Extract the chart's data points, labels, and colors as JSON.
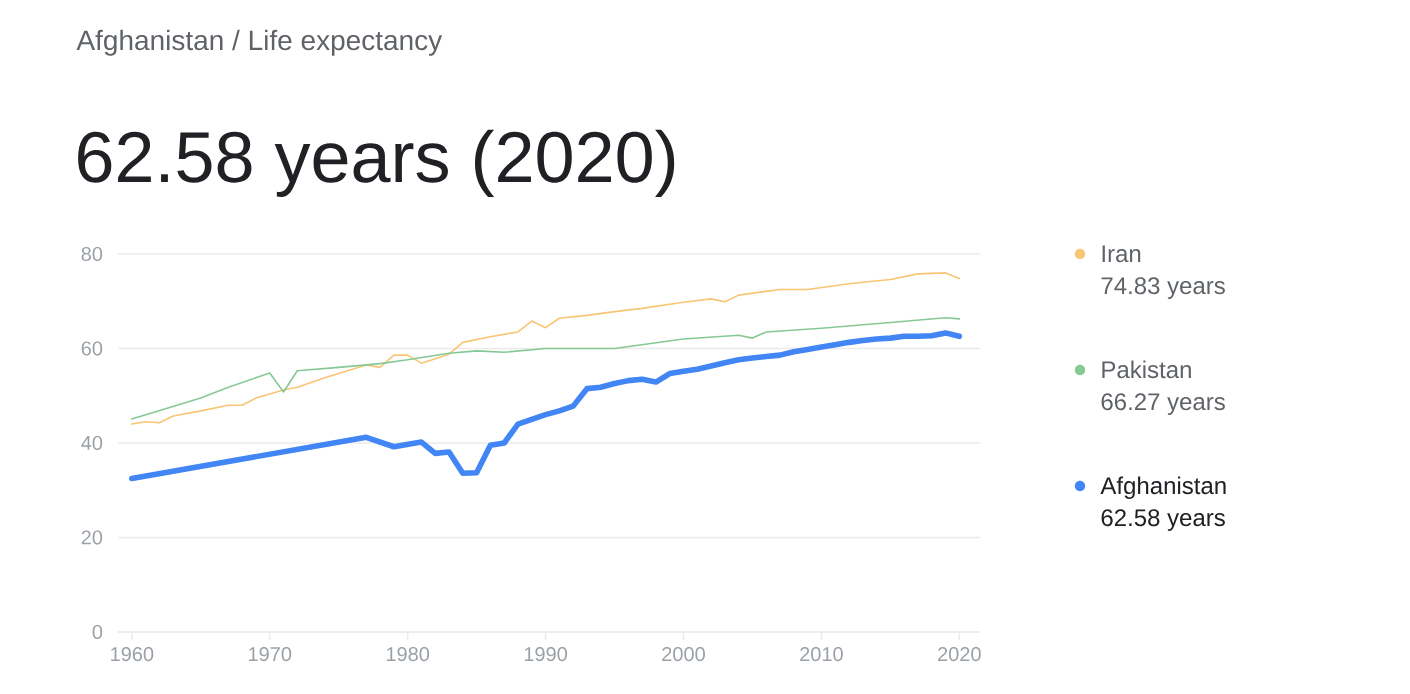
{
  "chart_data": {
    "type": "line",
    "title": "Afghanistan / Life expectancy",
    "subtitle": "62.58 years (2020)",
    "xlim": [
      1959,
      2021.5
    ],
    "xticks": [
      1960,
      1970,
      1980,
      1990,
      2000,
      2010,
      2020
    ],
    "ylim": [
      0,
      80
    ],
    "yticks": [
      0,
      20,
      40,
      60,
      80
    ],
    "grid": "y",
    "legend": "right",
    "marker": "none",
    "line_style": "solid",
    "annotations": [
      "74.83 years",
      "66.27 years",
      "62.58 years"
    ],
    "series": [
      {
        "name": "Iran",
        "color": "#f9c574",
        "x": [
          1960,
          1961,
          1962,
          1963,
          1965,
          1967,
          1968,
          1969,
          1971,
          1972,
          1974,
          1977,
          1978,
          1979,
          1980,
          1981,
          1983,
          1984,
          1986,
          1988,
          1989,
          1990,
          1991,
          1993,
          1995,
          1997,
          2000,
          2002,
          2003,
          2004,
          2007,
          2009,
          2012,
          2015,
          2017,
          2019,
          2020
        ],
        "values": [
          44.0,
          44.5,
          44.3,
          45.7,
          46.8,
          48.0,
          48.0,
          49.5,
          51.2,
          51.8,
          53.8,
          56.5,
          56.0,
          58.6,
          58.6,
          56.9,
          58.8,
          61.3,
          62.5,
          63.5,
          65.8,
          64.4,
          66.4,
          67.0,
          67.8,
          68.5,
          69.8,
          70.5,
          69.9,
          71.3,
          72.5,
          72.5,
          73.7,
          74.6,
          75.8,
          76.0,
          74.83
        ]
      },
      {
        "name": "Pakistan",
        "color": "#86c995",
        "x": [
          1960,
          1965,
          1967,
          1970,
          1971,
          1972,
          1975,
          1978,
          1980,
          1983,
          1985,
          1987,
          1990,
          1995,
          2000,
          2004,
          2005,
          2006,
          2010,
          2015,
          2019,
          2020
        ],
        "values": [
          45.1,
          49.5,
          51.8,
          54.8,
          50.8,
          55.3,
          56.0,
          56.8,
          57.6,
          59.0,
          59.5,
          59.2,
          60.0,
          60.0,
          62.0,
          62.8,
          62.2,
          63.5,
          64.3,
          65.5,
          66.5,
          66.27
        ]
      },
      {
        "name": "Afghanistan",
        "color": "#4285f4",
        "x": [
          1960,
          1977,
          1979,
          1981,
          1982,
          1983,
          1984,
          1985,
          1986,
          1987,
          1988,
          1990,
          1991,
          1992,
          1993,
          1994,
          1995,
          1996,
          1997,
          1998,
          1999,
          2000,
          2001,
          2002,
          2003,
          2004,
          2005,
          2006,
          2007,
          2008,
          2009,
          2010,
          2011,
          2012,
          2013,
          2014,
          2015,
          2016,
          2017,
          2018,
          2019,
          2020
        ],
        "values": [
          32.5,
          41.2,
          39.2,
          40.2,
          37.8,
          38.1,
          33.6,
          33.7,
          39.5,
          40.0,
          44.0,
          46.0,
          46.8,
          47.8,
          51.5,
          51.8,
          52.6,
          53.2,
          53.5,
          52.9,
          54.7,
          55.2,
          55.6,
          56.3,
          57.0,
          57.6,
          58.0,
          58.3,
          58.6,
          59.3,
          59.8,
          60.3,
          60.8,
          61.3,
          61.7,
          62.0,
          62.2,
          62.6,
          62.6,
          62.7,
          63.3,
          62.58
        ]
      }
    ]
  }
}
